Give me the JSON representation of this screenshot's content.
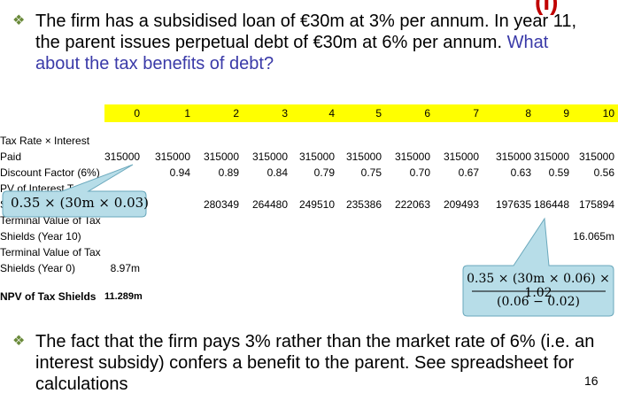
{
  "header": {
    "title_fragment": "(I)"
  },
  "bullets": [
    {
      "marker": "❖",
      "text": "The firm has a subsidised loan of €30m at 3% per annum. In year 11, the parent issues perpetual debt of €30m at 6% per annum.",
      "question": "What about the tax benefits of debt?"
    },
    {
      "marker": "❖",
      "text": "The fact that the firm pays 3% rather than the market rate of 6% (i.e. an interest subsidy) confers a benefit to the parent. See spreadsheet for calculations"
    }
  ],
  "table": {
    "columns": [
      "0",
      "1",
      "2",
      "3",
      "4",
      "5",
      "6",
      "7",
      "8",
      "9",
      "10"
    ],
    "rows": [
      {
        "label": "Tax Rate × Interest Paid",
        "cells": [
          "315000",
          "315000",
          "315000",
          "315000",
          "315000",
          "315000",
          "315000",
          "315000",
          "315000",
          "315000",
          "315000"
        ]
      },
      {
        "label": "Discount Factor (6%)",
        "cells": [
          null,
          "0.94",
          "0.89",
          "0.84",
          "0.79",
          "0.75",
          "0.70",
          "0.67",
          "0.63",
          "0.59",
          "0.56"
        ]
      },
      {
        "label": "PV of Interest Tax Shields",
        "cells": [
          null,
          null,
          "280349",
          "264480",
          "249510",
          "235386",
          "222063",
          "209493",
          "197635",
          "186448",
          "175894"
        ]
      },
      {
        "label": "Terminal Value of Tax Shields (Year 10)",
        "cells": [
          null,
          null,
          null,
          null,
          null,
          null,
          null,
          null,
          null,
          null,
          "16.065m"
        ]
      },
      {
        "label": "Terminal Value of Tax Shields (Year 0)",
        "cells": [
          "8.97m",
          null,
          null,
          null,
          null,
          null,
          null,
          null,
          null,
          null,
          null
        ]
      },
      {
        "label": "NPV of Tax Shields",
        "cells": [
          "11.289m",
          null,
          null,
          null,
          null,
          null,
          null,
          null,
          null,
          null,
          null
        ],
        "bold": true
      }
    ]
  },
  "callouts": [
    {
      "text": "0.35 × (30m × 0.03)"
    },
    {
      "numerator": "0.35 × (30m × 0.06) × 1.02",
      "denominator": "(0.06 − 0.02)"
    }
  ],
  "page_number": "16"
}
